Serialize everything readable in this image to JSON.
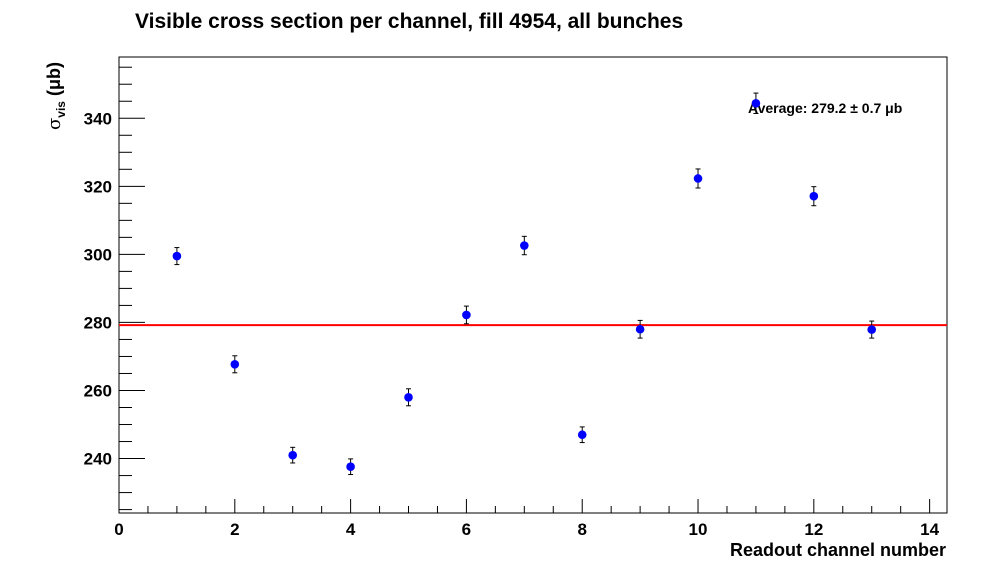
{
  "chart_data": {
    "type": "scatter",
    "title": "Visible cross section per channel, fill 4954, all bunches",
    "xlabel": "Readout channel number",
    "ylabel": {
      "symbol": "σ",
      "subscript": "vis",
      "unit": "(μb)"
    },
    "xlim": [
      0,
      14.3
    ],
    "ylim": [
      224,
      358
    ],
    "xticks": [
      0,
      2,
      4,
      6,
      8,
      10,
      12,
      14
    ],
    "yticks": [
      240,
      260,
      280,
      300,
      320,
      340
    ],
    "series": [
      {
        "marker_color": "#0000ff",
        "x": [
          1,
          2,
          3,
          4,
          5,
          6,
          7,
          8,
          9,
          10,
          11,
          12,
          13
        ],
        "y": [
          299.5,
          267.7,
          241.0,
          237.6,
          258.0,
          282.2,
          302.6,
          247.0,
          278.0,
          322.3,
          344.4,
          317.1,
          277.9
        ],
        "yerr": [
          2.5,
          2.5,
          2.3,
          2.3,
          2.5,
          2.6,
          2.7,
          2.3,
          2.6,
          2.8,
          3.0,
          2.8,
          2.5
        ]
      }
    ],
    "average": {
      "value": 279.2,
      "line_color": "#ff0000",
      "label": "Average: 279.2 ± 0.7 μb"
    },
    "grid": false
  }
}
